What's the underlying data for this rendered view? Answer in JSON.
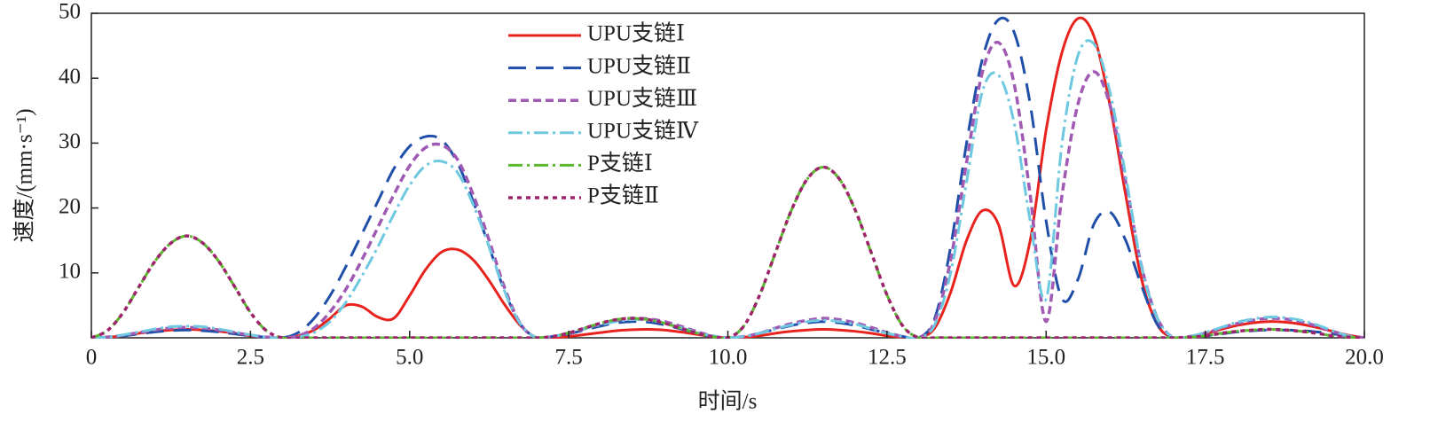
{
  "chart_data": {
    "type": "line",
    "xlabel": "时间/s",
    "ylabel": "速度/(mm·s⁻¹)",
    "x": [
      0,
      0.25,
      0.5,
      0.75,
      1,
      1.25,
      1.5,
      1.75,
      2,
      2.25,
      2.5,
      2.75,
      3,
      3.25,
      3.5,
      3.75,
      4,
      4.25,
      4.5,
      4.75,
      5,
      5.25,
      5.5,
      5.75,
      6,
      6.25,
      6.5,
      6.75,
      7,
      7.25,
      7.5,
      7.75,
      8,
      8.25,
      8.5,
      8.75,
      9,
      9.25,
      9.5,
      9.75,
      10,
      10.25,
      10.5,
      10.75,
      11,
      11.25,
      11.5,
      11.75,
      12,
      12.25,
      12.5,
      12.75,
      13,
      13.25,
      13.5,
      13.75,
      14,
      14.25,
      14.5,
      14.75,
      15,
      15.25,
      15.5,
      15.75,
      16,
      16.25,
      16.5,
      16.75,
      17,
      17.25,
      17.5,
      17.75,
      18,
      18.25,
      18.5,
      18.75,
      19,
      19.25,
      19.5,
      19.75,
      20
    ],
    "series": [
      {
        "name": "UPU支链Ⅰ",
        "color": "#e8221d",
        "values": [
          0,
          0.1,
          0.3,
          0.7,
          1,
          1.2,
          1.3,
          1.2,
          1,
          0.7,
          0.3,
          0.1,
          0,
          0.3,
          1.2,
          3,
          5,
          4.8,
          3.2,
          3,
          6.5,
          10.5,
          13.2,
          13.6,
          12,
          8.8,
          5,
          1.8,
          0,
          0.05,
          0.2,
          0.5,
          0.8,
          1.1,
          1.25,
          1.3,
          1.2,
          0.9,
          0.55,
          0.2,
          0,
          0.1,
          0.3,
          0.7,
          1,
          1.2,
          1.3,
          1.2,
          1,
          0.7,
          0.3,
          0.1,
          0,
          1.5,
          7,
          15,
          19.6,
          17.5,
          8,
          15,
          32,
          44,
          49.2,
          46.5,
          36,
          22,
          9,
          2,
          0,
          0.1,
          0.6,
          1.3,
          1.9,
          2.3,
          2.5,
          2.4,
          2.1,
          1.6,
          1,
          0.4,
          0
        ]
      },
      {
        "name": "UPU支链Ⅱ",
        "color": "#1f4fa8",
        "values": [
          0,
          0.1,
          0.3,
          0.6,
          0.9,
          1.1,
          1.2,
          1.1,
          0.9,
          0.6,
          0.3,
          0.1,
          0,
          0.8,
          3,
          6.5,
          11,
          16,
          21,
          26,
          29.5,
          31,
          30.5,
          27,
          21,
          14,
          7,
          2,
          0,
          0.2,
          0.6,
          1.2,
          1.8,
          2.3,
          2.5,
          2.4,
          2,
          1.4,
          0.7,
          0.2,
          0,
          0.2,
          0.7,
          1.3,
          1.9,
          2.3,
          2.5,
          2.3,
          1.9,
          1.3,
          0.7,
          0.2,
          0,
          3,
          14,
          30,
          43,
          49,
          47,
          36,
          18,
          6,
          9,
          17.5,
          19.4,
          15,
          8,
          2,
          0,
          0.1,
          0.3,
          0.6,
          0.9,
          1.1,
          1.2,
          1.2,
          1.1,
          0.9,
          0.6,
          0.3,
          0
        ]
      },
      {
        "name": "UPU支链Ⅲ",
        "color": "#a05ab4",
        "values": [
          0,
          0.1,
          0.4,
          0.8,
          1.2,
          1.5,
          1.6,
          1.5,
          1.2,
          0.8,
          0.4,
          0.1,
          0,
          0.3,
          1.5,
          4,
          7.5,
          12,
          17,
          22,
          26.5,
          29.3,
          29.7,
          27.5,
          22,
          15,
          7.5,
          2,
          0,
          0.2,
          0.7,
          1.4,
          2.1,
          2.7,
          3,
          2.9,
          2.5,
          1.8,
          1,
          0.3,
          0,
          0.2,
          0.7,
          1.5,
          2.2,
          2.7,
          3,
          2.8,
          2.3,
          1.6,
          0.8,
          0.2,
          0,
          2.5,
          12,
          27,
          41,
          45.5,
          39,
          22,
          2.5,
          22,
          36,
          41,
          36,
          24,
          11,
          3,
          0,
          0.2,
          0.7,
          1.5,
          2.2,
          2.7,
          3,
          2.9,
          2.5,
          1.8,
          1,
          0.3,
          0
        ]
      },
      {
        "name": "UPU支链Ⅳ",
        "color": "#6ec8e0",
        "values": [
          0,
          0.1,
          0.45,
          0.9,
          1.35,
          1.7,
          1.8,
          1.7,
          1.35,
          0.9,
          0.45,
          0.1,
          0,
          0.1,
          0.8,
          2.5,
          5.5,
          9.5,
          14,
          19,
          23.5,
          26.5,
          27.2,
          25.5,
          20.5,
          14,
          7,
          2,
          0,
          0.2,
          0.7,
          1.4,
          2,
          2.5,
          2.8,
          2.7,
          2.3,
          1.6,
          0.9,
          0.3,
          0,
          0.2,
          0.7,
          1.4,
          2,
          2.5,
          2.7,
          2.5,
          2.1,
          1.4,
          0.7,
          0.2,
          0,
          2,
          10,
          24,
          38,
          40.5,
          33,
          18,
          6,
          30,
          43.5,
          45.3,
          38,
          25,
          11,
          3,
          0,
          0.2,
          0.8,
          1.6,
          2.4,
          2.9,
          3.2,
          3.1,
          2.7,
          2,
          1.1,
          0.3,
          0
        ]
      },
      {
        "name": "P支链Ⅰ",
        "color": "#5ab82f",
        "values": [
          0,
          1.1,
          3.9,
          7.9,
          11.8,
          14.6,
          15.7,
          14.6,
          11.8,
          7.9,
          3.9,
          1.1,
          0,
          0,
          0,
          0,
          0,
          0,
          0,
          0,
          0,
          0,
          0,
          0,
          0,
          0,
          0,
          0,
          0,
          0.2,
          0.75,
          1.5,
          2.25,
          2.8,
          3,
          2.8,
          2.25,
          1.5,
          0.75,
          0.2,
          0,
          1.8,
          6.6,
          13.2,
          19.7,
          24.5,
          26.3,
          24.5,
          19.7,
          13.2,
          6.6,
          1.8,
          0,
          0,
          0,
          0,
          0,
          0,
          0,
          0,
          0,
          0,
          0,
          0,
          0,
          0,
          0,
          0,
          0,
          0.1,
          0.3,
          0.7,
          1,
          1.2,
          1.3,
          1.2,
          1,
          0.7,
          0.3,
          0.1,
          0
        ]
      },
      {
        "name": "P支链Ⅱ",
        "color": "#a0226e",
        "values": [
          0,
          1.1,
          3.9,
          7.9,
          11.8,
          14.6,
          15.7,
          14.6,
          11.8,
          7.9,
          3.9,
          1.1,
          0,
          0,
          0,
          0,
          0,
          0,
          0,
          0,
          0,
          0,
          0,
          0,
          0,
          0,
          0,
          0,
          0,
          0.2,
          0.75,
          1.5,
          2.25,
          2.8,
          3,
          2.8,
          2.25,
          1.5,
          0.75,
          0.2,
          0,
          1.8,
          6.6,
          13.2,
          19.7,
          24.5,
          26.3,
          24.5,
          19.7,
          13.2,
          6.6,
          1.8,
          0,
          0,
          0,
          0,
          0,
          0,
          0,
          0,
          0,
          0,
          0,
          0,
          0,
          0,
          0,
          0,
          0,
          0.1,
          0.3,
          0.7,
          1,
          1.2,
          1.3,
          1.2,
          1,
          0.7,
          0.3,
          0.1,
          0
        ]
      }
    ],
    "xlim": [
      0,
      20
    ],
    "ylim": [
      0,
      50
    ],
    "xticks": [
      0,
      2.5,
      {
        "value": 5,
        "label": "5.0"
      },
      7.5,
      {
        "value": 10,
        "label": "10.0"
      },
      12.5,
      {
        "value": 15,
        "label": "15.0"
      },
      17.5,
      {
        "value": 20,
        "label": "20.0"
      }
    ],
    "yticks": [
      10,
      20,
      30,
      40,
      50
    ],
    "grid": false
  }
}
